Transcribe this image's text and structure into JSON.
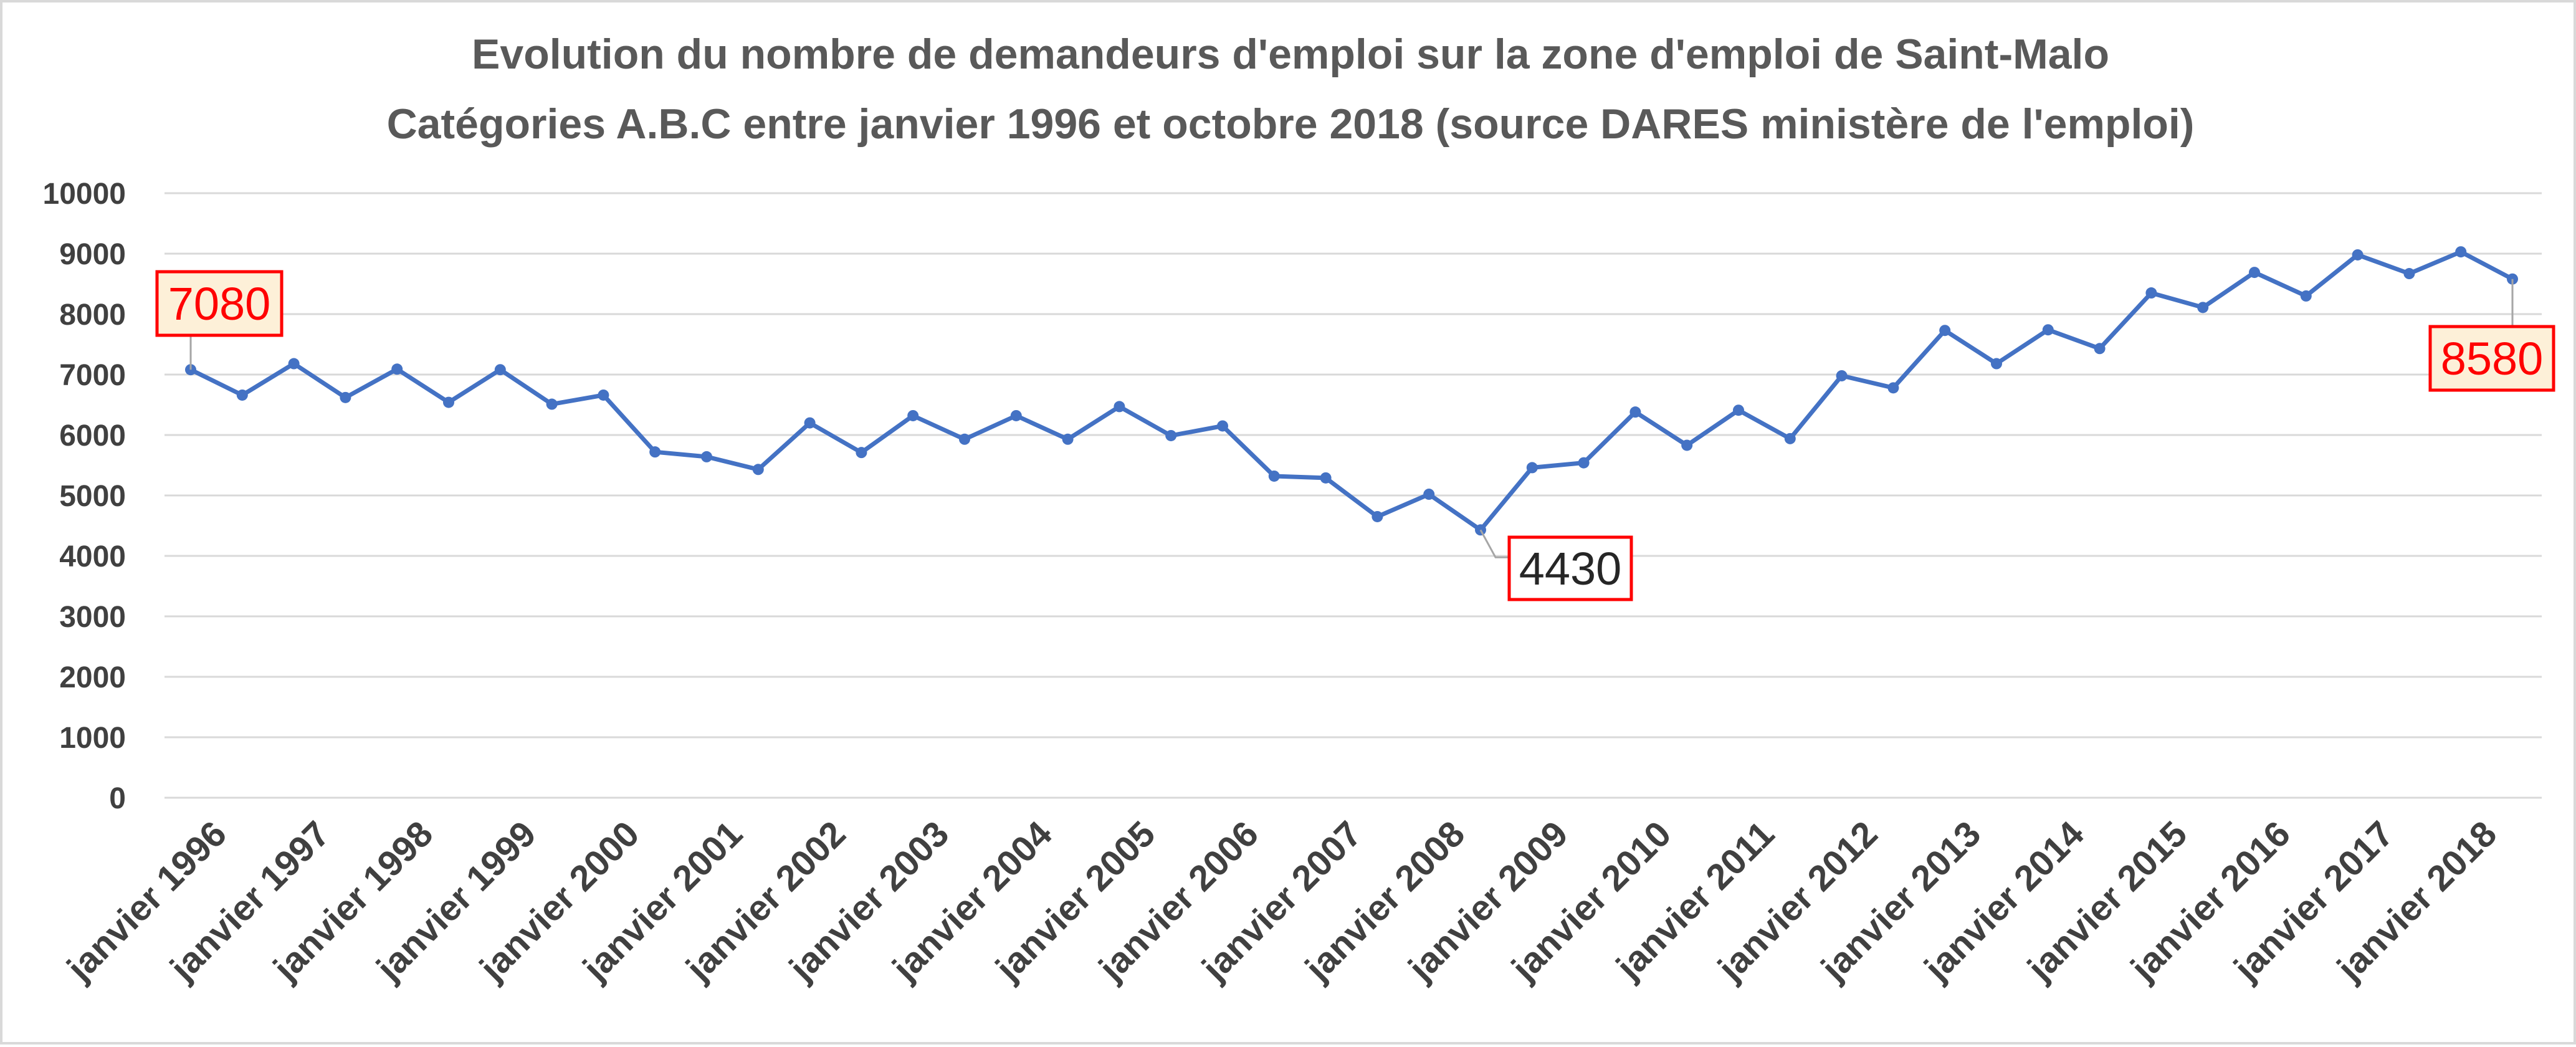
{
  "chart_data": {
    "type": "line",
    "title": "Evolution du nombre de demandeurs d'emploi sur la zone d'emploi de Saint-Malo",
    "subtitle": "Catégories A.B.C  entre janvier 1996 et octobre 2018 (source DARES ministère de l'emploi)",
    "xlabel": "",
    "ylabel": "",
    "ylim": [
      0,
      10000
    ],
    "yticks": [
      0,
      1000,
      2000,
      3000,
      4000,
      5000,
      6000,
      7000,
      8000,
      9000,
      10000
    ],
    "grid": true,
    "legend": "none",
    "x_tick_labels": [
      "janvier 1996",
      "janvier 1997",
      "janvier 1998",
      "janvier 1999",
      "janvier 2000",
      "janvier 2001",
      "janvier 2002",
      "janvier 2003",
      "janvier 2004",
      "janvier 2005",
      "janvier 2006",
      "janvier 2007",
      "janvier 2008",
      "janvier 2009",
      "janvier 2010",
      "janvier 2011",
      "janvier 2012",
      "janvier 2013",
      "janvier 2014",
      "janvier 2015",
      "janvier 2016",
      "janvier 2017",
      "janvier 2018"
    ],
    "series": [
      {
        "color": "#4472c4",
        "values": [
          7080,
          6660,
          7180,
          6620,
          7090,
          6540,
          7080,
          6510,
          6660,
          5720,
          5640,
          5430,
          6200,
          5710,
          6320,
          5930,
          6320,
          5930,
          6470,
          5990,
          6150,
          5320,
          5290,
          4650,
          5020,
          4430,
          5460,
          5540,
          6380,
          5830,
          6410,
          5940,
          6980,
          6780,
          7730,
          7180,
          7740,
          7430,
          8350,
          8110,
          8690,
          8300,
          8980,
          8670,
          9030,
          8580
        ]
      }
    ],
    "annotations": [
      {
        "label": "7080",
        "point_index": 0,
        "color": "#ff0000",
        "background": "#fdf0d8",
        "border": "#ff0000"
      },
      {
        "label": "4430",
        "point_index": 25,
        "color": "#262626",
        "background": "#ffffff",
        "border": "#ff0000"
      },
      {
        "label": "8580",
        "point_index": 45,
        "color": "#ff0000",
        "background": "#fdf0d8",
        "border": "#ff0000"
      }
    ]
  }
}
